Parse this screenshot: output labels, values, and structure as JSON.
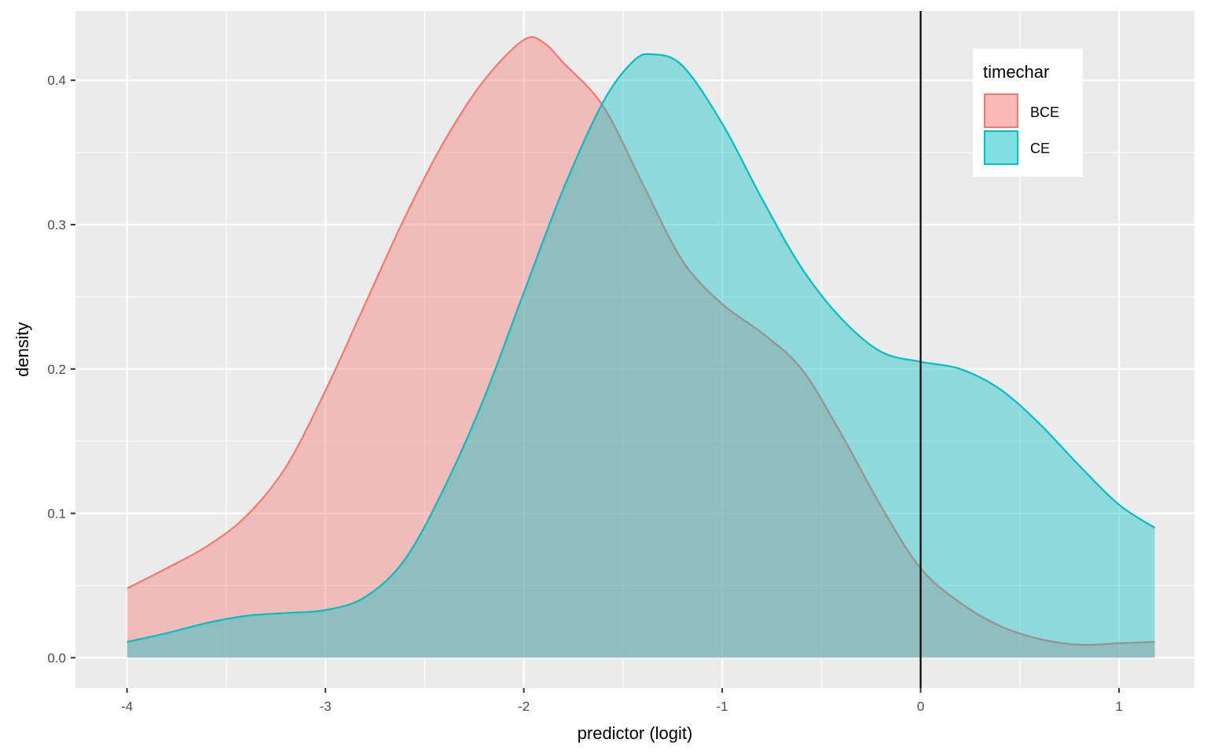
{
  "chart_data": {
    "type": "area",
    "xlabel": "predictor (logit)",
    "ylabel": "density",
    "xlim": [
      -4.26,
      1.38
    ],
    "ylim": [
      -0.021,
      0.448
    ],
    "x_ticks": [
      -4,
      -3,
      -2,
      -1,
      0,
      1
    ],
    "x_tick_labels": [
      "-4",
      "-3",
      "-2",
      "-1",
      "0",
      "1"
    ],
    "y_ticks": [
      0.0,
      0.1,
      0.2,
      0.3,
      0.4
    ],
    "y_tick_labels": [
      "0.0",
      "0.1",
      "0.2",
      "0.3",
      "0.4"
    ],
    "grid": true,
    "reference_line": {
      "x": 0,
      "color": "#000000"
    },
    "legend": {
      "title": "timechar",
      "position": "top-right"
    },
    "series": [
      {
        "name": "BCE",
        "color": "#F8766D",
        "points": [
          [
            -4.0,
            0.048
          ],
          [
            -3.8,
            0.062
          ],
          [
            -3.6,
            0.077
          ],
          [
            -3.4,
            0.098
          ],
          [
            -3.2,
            0.132
          ],
          [
            -3.0,
            0.185
          ],
          [
            -2.8,
            0.245
          ],
          [
            -2.6,
            0.305
          ],
          [
            -2.4,
            0.358
          ],
          [
            -2.2,
            0.4
          ],
          [
            -2.0,
            0.428
          ],
          [
            -1.9,
            0.426
          ],
          [
            -1.8,
            0.412
          ],
          [
            -1.6,
            0.382
          ],
          [
            -1.4,
            0.328
          ],
          [
            -1.2,
            0.275
          ],
          [
            -1.0,
            0.245
          ],
          [
            -0.8,
            0.225
          ],
          [
            -0.6,
            0.2
          ],
          [
            -0.4,
            0.155
          ],
          [
            -0.2,
            0.105
          ],
          [
            0.0,
            0.062
          ],
          [
            0.2,
            0.038
          ],
          [
            0.4,
            0.022
          ],
          [
            0.6,
            0.013
          ],
          [
            0.8,
            0.009
          ],
          [
            1.0,
            0.01
          ],
          [
            1.18,
            0.011
          ]
        ]
      },
      {
        "name": "CE",
        "color": "#00BFC4",
        "points": [
          [
            -4.0,
            0.011
          ],
          [
            -3.8,
            0.017
          ],
          [
            -3.6,
            0.024
          ],
          [
            -3.4,
            0.029
          ],
          [
            -3.2,
            0.031
          ],
          [
            -3.0,
            0.033
          ],
          [
            -2.8,
            0.042
          ],
          [
            -2.6,
            0.068
          ],
          [
            -2.4,
            0.118
          ],
          [
            -2.2,
            0.18
          ],
          [
            -2.0,
            0.253
          ],
          [
            -1.8,
            0.325
          ],
          [
            -1.6,
            0.385
          ],
          [
            -1.45,
            0.413
          ],
          [
            -1.35,
            0.418
          ],
          [
            -1.2,
            0.41
          ],
          [
            -1.0,
            0.37
          ],
          [
            -0.8,
            0.318
          ],
          [
            -0.6,
            0.27
          ],
          [
            -0.4,
            0.235
          ],
          [
            -0.2,
            0.212
          ],
          [
            0.0,
            0.205
          ],
          [
            0.2,
            0.2
          ],
          [
            0.4,
            0.186
          ],
          [
            0.6,
            0.162
          ],
          [
            0.8,
            0.133
          ],
          [
            1.0,
            0.106
          ],
          [
            1.18,
            0.09
          ]
        ]
      }
    ]
  }
}
